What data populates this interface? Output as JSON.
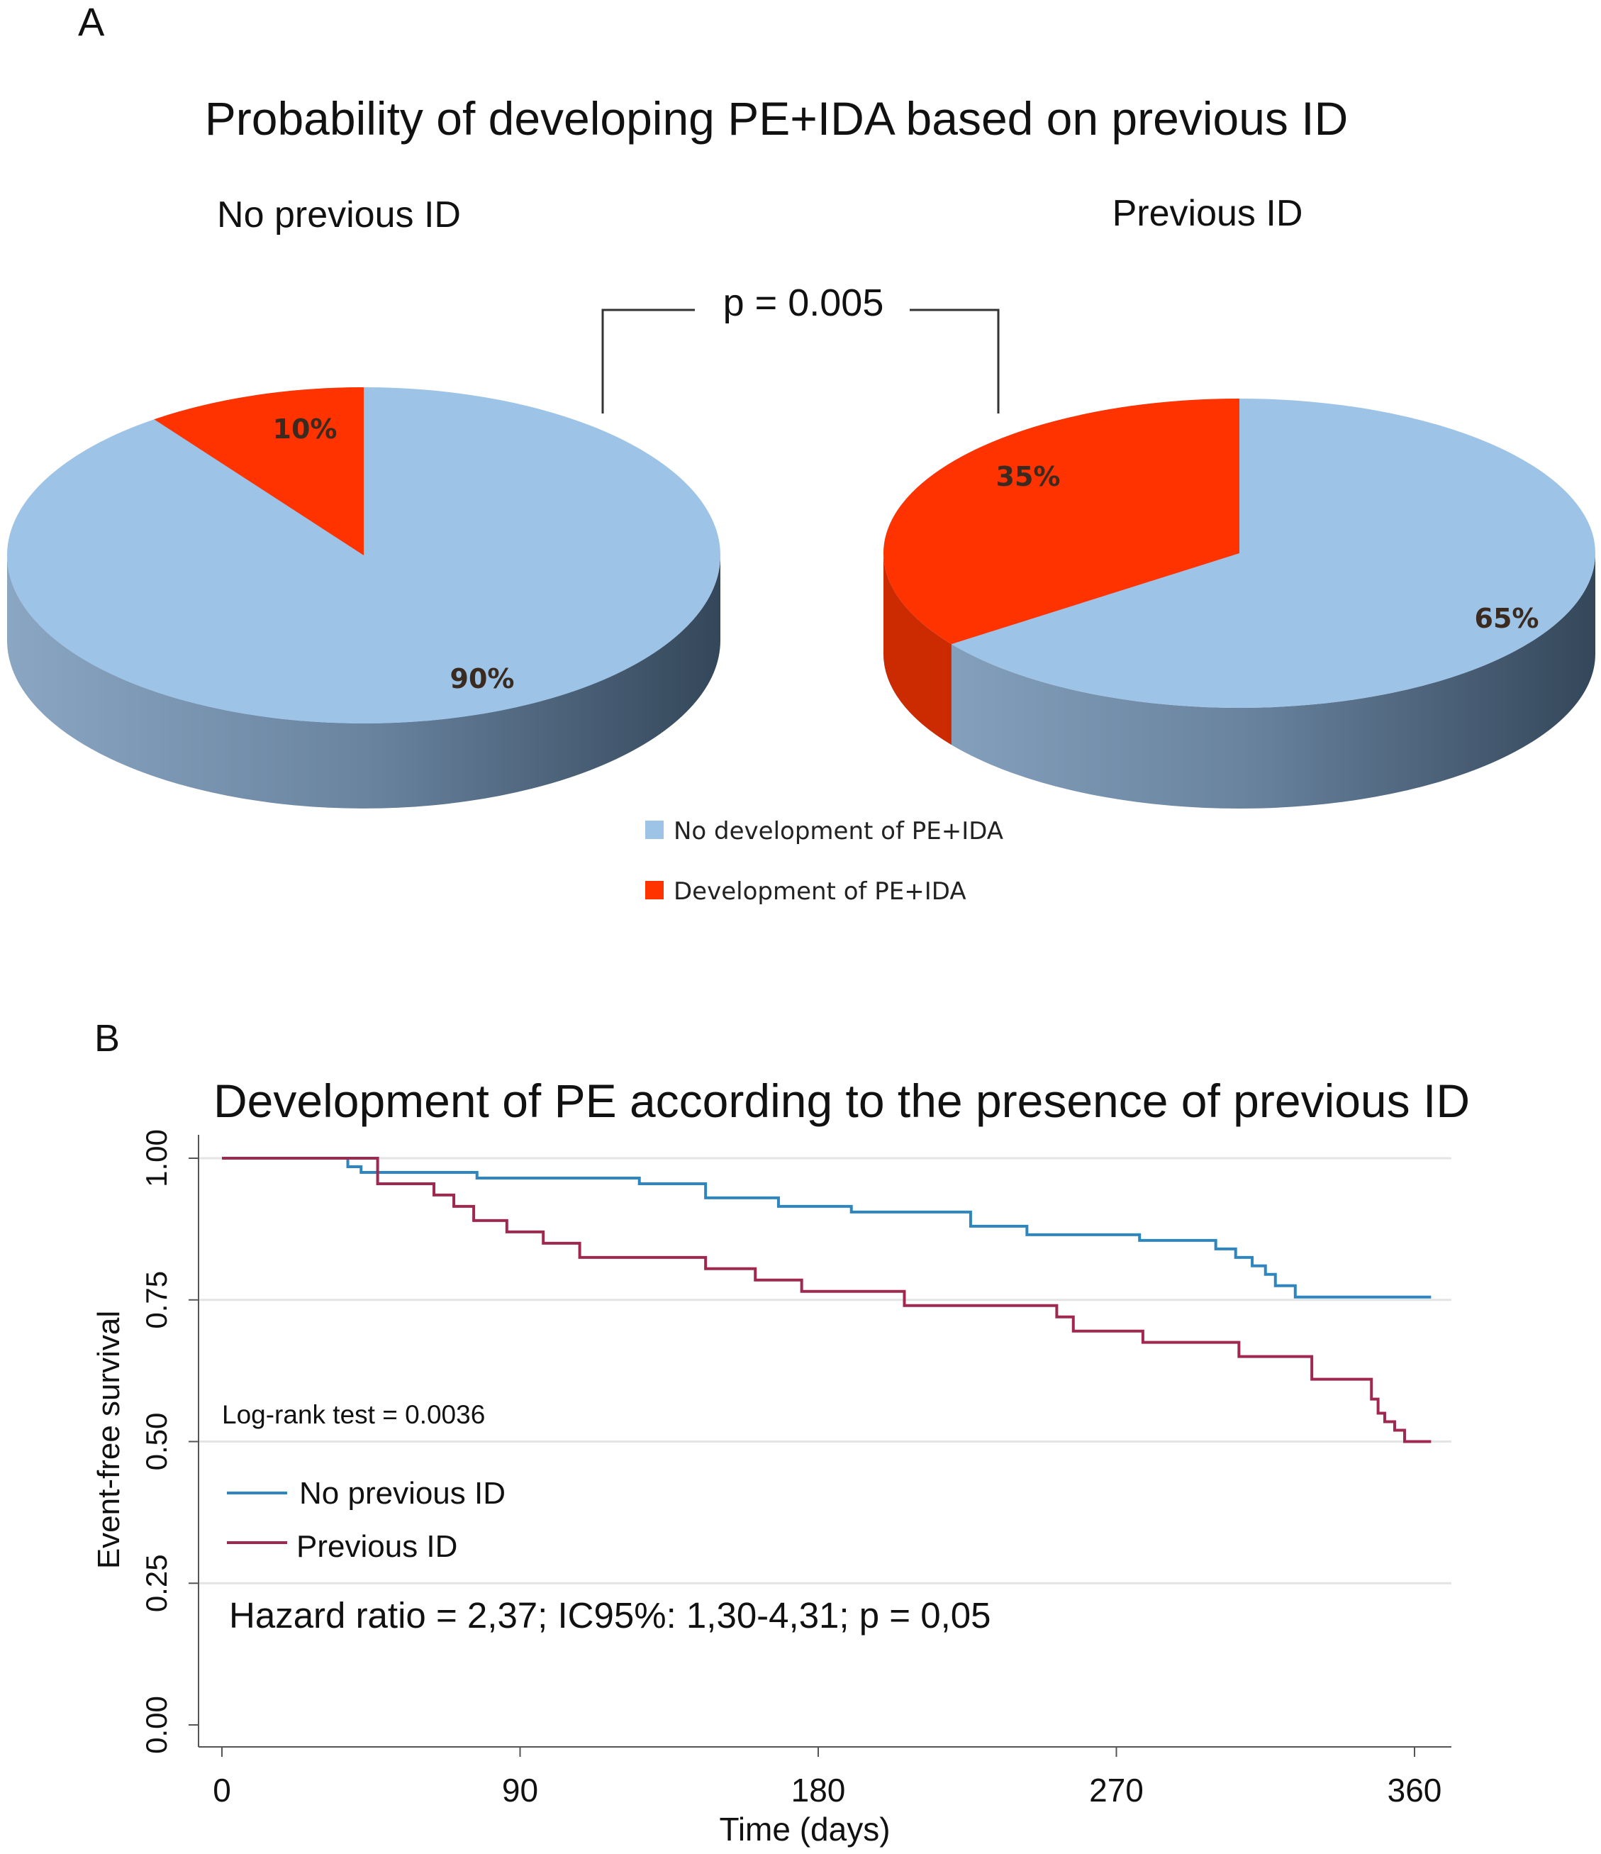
{
  "chart_data": [
    {
      "type": "pie",
      "panel_label": "A",
      "title": "Probability of developing PE+IDA based on previous ID",
      "annotation": "p = 0.005",
      "legend": [
        "No development of PE+IDA",
        "Development of PE+IDA"
      ],
      "colors": {
        "no_development": "#9dc3e6",
        "development": "#ff3300",
        "side": "#5f7a96"
      },
      "pies": [
        {
          "name": "No previous ID",
          "values": [
            90,
            10
          ],
          "labels": [
            "90%",
            "10%"
          ]
        },
        {
          "name": "Previous ID",
          "values": [
            65,
            35
          ],
          "labels": [
            "65%",
            "35%"
          ]
        }
      ]
    },
    {
      "type": "line",
      "panel_label": "B",
      "title": "Development of PE according to the presence of previous ID",
      "xlabel": "Time (days)",
      "ylabel": "Event-free survival",
      "xlim": [
        0,
        365
      ],
      "ylim": [
        0,
        1
      ],
      "xticks": [
        "0",
        "90",
        "180",
        "270",
        "360"
      ],
      "xtick_values": [
        0,
        90,
        180,
        270,
        360
      ],
      "yticks": [
        "0.00",
        "0.25",
        "0.50",
        "0.75",
        "1.00"
      ],
      "ytick_values": [
        0,
        0.25,
        0.5,
        0.75,
        1
      ],
      "grid": true,
      "annotations": [
        "Log-rank test = 0.0036",
        "Hazard ratio = 2,37; IC95%: 1,30-4,31; p = 0,05"
      ],
      "series": [
        {
          "name": "No previous ID",
          "color": "#2e86c1",
          "steps": [
            [
              0,
              1.0
            ],
            [
              38,
              0.985
            ],
            [
              42,
              0.975
            ],
            [
              77,
              0.965
            ],
            [
              126,
              0.955
            ],
            [
              146,
              0.93
            ],
            [
              168,
              0.915
            ],
            [
              190,
              0.905
            ],
            [
              226,
              0.88
            ],
            [
              243,
              0.865
            ],
            [
              277,
              0.855
            ],
            [
              300,
              0.84
            ],
            [
              306,
              0.825
            ],
            [
              311,
              0.81
            ],
            [
              315,
              0.795
            ],
            [
              318,
              0.775
            ],
            [
              324,
              0.755
            ],
            [
              365,
              0.755
            ]
          ]
        },
        {
          "name": "Previous ID",
          "color": "#a0284f",
          "steps": [
            [
              0,
              1.0
            ],
            [
              47,
              0.955
            ],
            [
              64,
              0.935
            ],
            [
              70,
              0.915
            ],
            [
              76,
              0.89
            ],
            [
              86,
              0.87
            ],
            [
              97,
              0.85
            ],
            [
              108,
              0.825
            ],
            [
              146,
              0.805
            ],
            [
              161,
              0.785
            ],
            [
              175,
              0.765
            ],
            [
              206,
              0.74
            ],
            [
              252,
              0.72
            ],
            [
              257,
              0.695
            ],
            [
              278,
              0.675
            ],
            [
              307,
              0.65
            ],
            [
              329,
              0.61
            ],
            [
              347,
              0.575
            ],
            [
              349,
              0.55
            ],
            [
              351,
              0.535
            ],
            [
              354,
              0.52
            ],
            [
              357,
              0.5
            ],
            [
              365,
              0.5
            ]
          ]
        }
      ]
    }
  ]
}
